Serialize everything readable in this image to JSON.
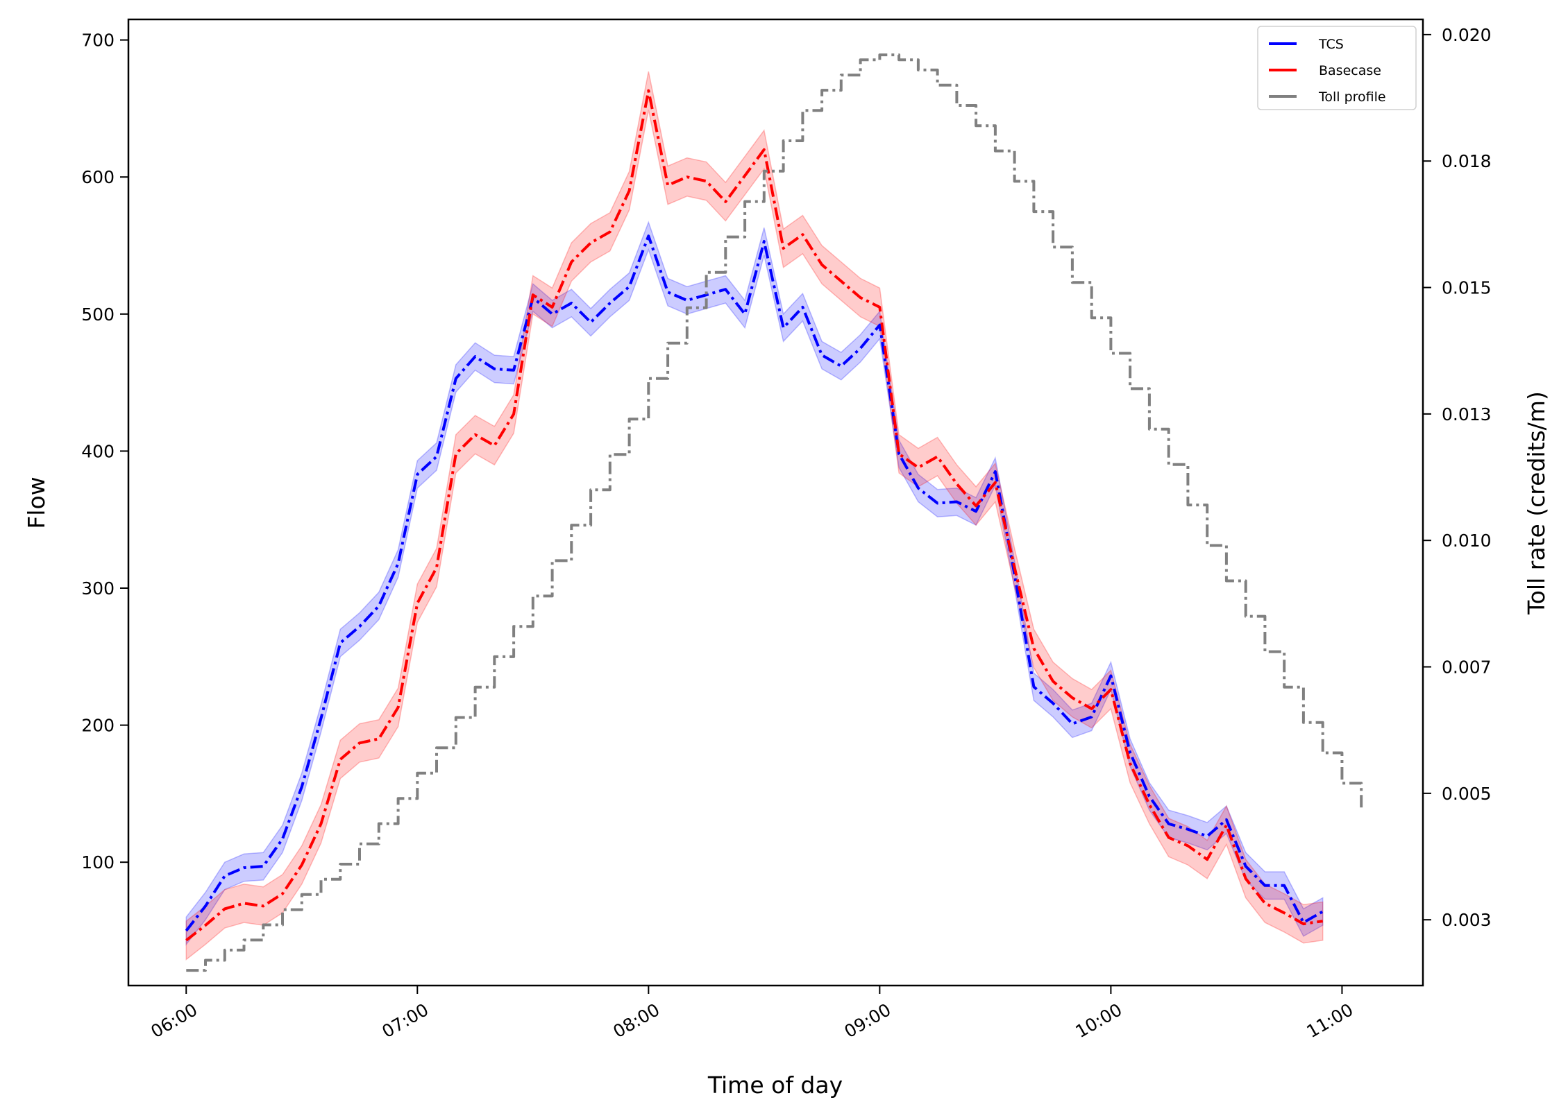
{
  "chart_data": {
    "type": "line",
    "xlabel": "Time of day",
    "ylabel": "Flow",
    "y2label": "Toll rate (credits/m)",
    "xlim": [
      -0.25,
      5.35
    ],
    "ylim": [
      10,
      715
    ],
    "y2lim": [
      0.0012,
      0.0203
    ],
    "x_ticks": [
      0,
      1,
      2,
      3,
      4,
      5
    ],
    "x_tick_labels": [
      "06:00",
      "07:00",
      "08:00",
      "09:00",
      "10:00",
      "11:00"
    ],
    "y_ticks": [
      100,
      200,
      300,
      400,
      500,
      600,
      700
    ],
    "y_tick_labels": [
      "100",
      "200",
      "300",
      "400",
      "500",
      "600",
      "700"
    ],
    "y2_ticks": [
      0.0025,
      0.005,
      0.0075,
      0.01,
      0.0125,
      0.015,
      0.0175,
      0.02
    ],
    "y2_tick_labels": [
      "0.003",
      "0.005",
      "0.007",
      "0.010",
      "0.013",
      "0.015",
      "0.018",
      "0.020"
    ],
    "legend": {
      "position": "top-right",
      "entries": [
        {
          "label": "TCS",
          "color": "#0000ff"
        },
        {
          "label": "Basecase",
          "color": "#ff0000"
        },
        {
          "label": "Toll profile",
          "color": "#808080"
        }
      ]
    },
    "series": [
      {
        "name": "TCS",
        "color": "#0000ff",
        "band_halfwidth": 10,
        "x": [
          0,
          0.0833,
          0.1667,
          0.25,
          0.3333,
          0.4167,
          0.5,
          0.5833,
          0.6667,
          0.75,
          0.8333,
          0.9167,
          1,
          1.0833,
          1.1667,
          1.25,
          1.3333,
          1.4167,
          1.5,
          1.5833,
          1.6667,
          1.75,
          1.8333,
          1.9167,
          2,
          2.0833,
          2.1667,
          2.25,
          2.3333,
          2.4167,
          2.5,
          2.5833,
          2.6667,
          2.75,
          2.8333,
          2.9167,
          3,
          3.0833,
          3.1667,
          3.25,
          3.3333,
          3.4167,
          3.5,
          3.5833,
          3.6667,
          3.75,
          3.8333,
          3.9167,
          4,
          4.0833,
          4.1667,
          4.25,
          4.3333,
          4.4167,
          4.5,
          4.5833,
          4.6667,
          4.75,
          4.8333,
          4.9167
        ],
        "values": [
          50,
          68,
          90,
          96,
          97,
          117,
          155,
          205,
          260,
          272,
          287,
          318,
          383,
          396,
          453,
          469,
          460,
          459,
          512,
          500,
          508,
          494,
          508,
          520,
          557,
          516,
          510,
          514,
          518,
          500,
          553,
          490,
          505,
          470,
          462,
          475,
          492,
          398,
          373,
          362,
          363,
          356,
          385,
          310,
          228,
          216,
          201,
          206,
          236,
          180,
          148,
          128,
          124,
          119,
          131,
          97,
          83,
          83,
          56,
          64
        ]
      },
      {
        "name": "Basecase",
        "color": "#ff0000",
        "band_halfwidth": 14,
        "x": [
          0,
          0.0833,
          0.1667,
          0.25,
          0.3333,
          0.4167,
          0.5,
          0.5833,
          0.6667,
          0.75,
          0.8333,
          0.9167,
          1,
          1.0833,
          1.1667,
          1.25,
          1.3333,
          1.4167,
          1.5,
          1.5833,
          1.6667,
          1.75,
          1.8333,
          1.9167,
          2,
          2.0833,
          2.1667,
          2.25,
          2.3333,
          2.4167,
          2.5,
          2.5833,
          2.6667,
          2.75,
          2.8333,
          2.9167,
          3,
          3.0833,
          3.1667,
          3.25,
          3.3333,
          3.4167,
          3.5,
          3.5833,
          3.6667,
          3.75,
          3.8333,
          3.9167,
          4,
          4.0833,
          4.1667,
          4.25,
          4.3333,
          4.4167,
          4.5,
          4.5833,
          4.6667,
          4.75,
          4.8333,
          4.9167
        ],
        "values": [
          43,
          54,
          66,
          70,
          68,
          77,
          98,
          128,
          175,
          187,
          190,
          213,
          289,
          315,
          398,
          412,
          404,
          427,
          514,
          505,
          538,
          552,
          560,
          590,
          663,
          594,
          600,
          597,
          582,
          601,
          620,
          548,
          558,
          536,
          524,
          512,
          505,
          398,
          388,
          396,
          376,
          360,
          377,
          315,
          256,
          232,
          220,
          212,
          226,
          172,
          142,
          118,
          112,
          102,
          127,
          88,
          70,
          63,
          55,
          57
        ]
      },
      {
        "name": "Toll profile",
        "color": "#808080",
        "axis": "y2",
        "step": true,
        "x": [
          0,
          0.0833,
          0.1667,
          0.25,
          0.3333,
          0.4167,
          0.5,
          0.5833,
          0.6667,
          0.75,
          0.8333,
          0.9167,
          1,
          1.0833,
          1.1667,
          1.25,
          1.3333,
          1.4167,
          1.5,
          1.5833,
          1.6667,
          1.75,
          1.8333,
          1.9167,
          2,
          2.0833,
          2.1667,
          2.25,
          2.3333,
          2.4167,
          2.5,
          2.5833,
          2.6667,
          2.75,
          2.8333,
          2.9167,
          3,
          3.0833,
          3.1667,
          3.25,
          3.3333,
          3.4167,
          3.5,
          3.5833,
          3.6667,
          3.75,
          3.8333,
          3.9167,
          4,
          4.0833,
          4.1667,
          4.25,
          4.3333,
          4.4167,
          4.5,
          4.5833,
          4.6667,
          4.75,
          4.8333,
          4.9167,
          5,
          5.0833
        ],
        "values": [
          0.0015,
          0.0017,
          0.0019,
          0.0021,
          0.0024,
          0.0027,
          0.003,
          0.0033,
          0.0036,
          0.004,
          0.0044,
          0.0049,
          0.0054,
          0.0059,
          0.0065,
          0.0071,
          0.0077,
          0.0083,
          0.0089,
          0.0096,
          0.0103,
          0.011,
          0.0117,
          0.0124,
          0.0132,
          0.0139,
          0.0146,
          0.0153,
          0.016,
          0.0167,
          0.0173,
          0.0179,
          0.0185,
          0.0189,
          0.0192,
          0.0195,
          0.0196,
          0.0195,
          0.0193,
          0.019,
          0.0186,
          0.0182,
          0.0177,
          0.0171,
          0.0165,
          0.0158,
          0.0151,
          0.0144,
          0.0137,
          0.013,
          0.0122,
          0.0115,
          0.0107,
          0.0099,
          0.0092,
          0.0085,
          0.0078,
          0.0071,
          0.0064,
          0.0058,
          0.0052,
          0.0047
        ]
      }
    ]
  }
}
